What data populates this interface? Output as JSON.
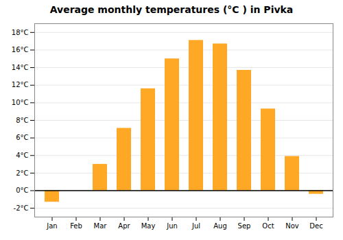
{
  "chart_data": {
    "type": "bar",
    "title": "Average monthly temperatures (°C ) in Pivka",
    "categories": [
      "Jan",
      "Feb",
      "Mar",
      "Apr",
      "May",
      "Jun",
      "Jul",
      "Aug",
      "Sep",
      "Oct",
      "Nov",
      "Dec"
    ],
    "values": [
      -1.3,
      0.0,
      3.0,
      7.1,
      11.6,
      15.0,
      17.1,
      16.7,
      13.7,
      9.3,
      3.9,
      -0.4
    ],
    "color": "#FFA826",
    "ylim": [
      -3,
      19
    ],
    "yticks": [
      {
        "value": -2,
        "label": "-2°C"
      },
      {
        "value": 0,
        "label": "0°C"
      },
      {
        "value": 2,
        "label": "2°C"
      },
      {
        "value": 4,
        "label": "4°C"
      },
      {
        "value": 6,
        "label": "6°C"
      },
      {
        "value": 8,
        "label": "8°C"
      },
      {
        "value": 10,
        "label": "10°C"
      },
      {
        "value": 12,
        "label": "12°C"
      },
      {
        "value": 14,
        "label": "14°C"
      },
      {
        "value": 16,
        "label": "16°C"
      },
      {
        "value": 18,
        "label": "18°C"
      }
    ],
    "grid": true
  }
}
